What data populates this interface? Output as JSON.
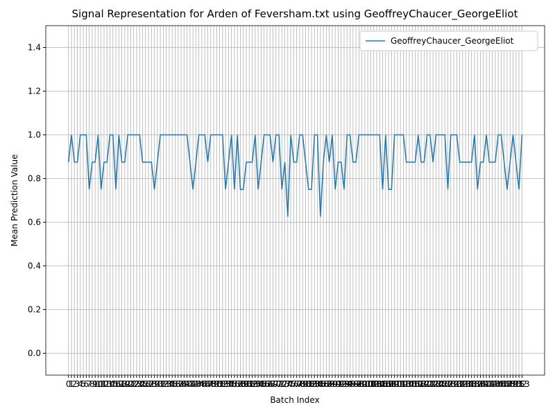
{
  "chart_data": {
    "type": "line",
    "title": "Signal Representation for Arden of Feversham.txt using GeoffreyChaucer_GeorgeEliot",
    "x_label": "Batch Index",
    "y_label": "Mean Prediction Value",
    "x": [
      0,
      1,
      2,
      3,
      4,
      5,
      6,
      7,
      8,
      9,
      10,
      11,
      12,
      13,
      14,
      15,
      16,
      17,
      18,
      19,
      20,
      21,
      22,
      23,
      24,
      25,
      26,
      27,
      28,
      29,
      30,
      31,
      32,
      33,
      34,
      35,
      36,
      37,
      38,
      39,
      40,
      41,
      42,
      43,
      44,
      45,
      46,
      47,
      48,
      49,
      50,
      51,
      52,
      53,
      54,
      55,
      56,
      57,
      58,
      59,
      60,
      61,
      62,
      63,
      64,
      65,
      66,
      67,
      68,
      69,
      70,
      71,
      72,
      73,
      74,
      75,
      76,
      77,
      78,
      79,
      80,
      81,
      82,
      83,
      84,
      85,
      86,
      87,
      88,
      89,
      90,
      91,
      92,
      93,
      94,
      95,
      96,
      97,
      98,
      99,
      100,
      101,
      102,
      103,
      104,
      105,
      106,
      107,
      108,
      109,
      110,
      111,
      112,
      113,
      114,
      115,
      116,
      117,
      118,
      119,
      120,
      121,
      122,
      123,
      124,
      125,
      126,
      127,
      128,
      129,
      130,
      131,
      132,
      133,
      134,
      135,
      136,
      137,
      138,
      139,
      140,
      141,
      142,
      143,
      144,
      145,
      146,
      147,
      148,
      149,
      150,
      151,
      152,
      153
    ],
    "series": [
      {
        "name": "GeoffreyChaucer_GeorgeEliot",
        "color": "#1f77b4",
        "values": [
          0.875,
          1,
          0.875,
          0.875,
          1,
          1,
          1,
          0.75,
          0.875,
          0.875,
          1,
          0.75,
          0.875,
          0.875,
          1,
          1,
          0.75,
          1,
          0.875,
          0.875,
          1,
          1,
          1,
          1,
          1,
          0.875,
          0.875,
          0.875,
          0.875,
          0.75,
          0.875,
          1,
          1,
          1,
          1,
          1,
          1,
          1,
          1,
          1,
          1,
          0.875,
          0.75,
          0.875,
          1,
          1,
          1,
          0.875,
          1,
          1,
          1,
          1,
          1,
          0.75,
          0.875,
          1,
          0.75,
          1,
          0.75,
          0.75,
          0.875,
          0.875,
          0.875,
          1,
          0.75,
          0.875,
          1,
          1,
          1,
          0.875,
          1,
          1,
          0.75,
          0.875,
          0.625,
          1,
          0.875,
          0.875,
          1,
          1,
          0.875,
          0.75,
          0.75,
          1,
          1,
          0.625,
          0.875,
          1,
          0.875,
          1,
          0.75,
          0.875,
          0.875,
          0.75,
          1,
          1,
          0.875,
          0.875,
          1,
          1,
          1,
          1,
          1,
          1,
          1,
          1,
          0.75,
          1,
          0.75,
          0.75,
          1,
          1,
          1,
          1,
          0.875,
          0.875,
          0.875,
          0.875,
          1,
          0.875,
          0.875,
          1,
          1,
          0.875,
          1,
          1,
          1,
          1,
          0.75,
          1,
          1,
          1,
          0.875,
          0.875,
          0.875,
          0.875,
          0.875,
          1,
          0.75,
          0.875,
          0.875,
          1,
          0.875,
          0.875,
          0.875,
          1,
          1,
          0.875,
          0.75,
          0.875,
          1,
          0.875,
          0.75,
          1
        ]
      }
    ],
    "xlim": [
      -7.65,
      160.65
    ],
    "ylim": [
      -0.1,
      1.5
    ],
    "xticks": [
      0,
      1,
      2,
      3,
      4,
      5,
      6,
      7,
      8,
      9,
      10,
      11,
      12,
      13,
      14,
      15,
      16,
      17,
      18,
      19,
      20,
      21,
      22,
      23,
      24,
      25,
      26,
      27,
      28,
      29,
      30,
      31,
      32,
      33,
      34,
      35,
      36,
      37,
      38,
      39,
      40,
      41,
      42,
      43,
      44,
      45,
      46,
      47,
      48,
      49,
      50,
      51,
      52,
      53,
      54,
      55,
      56,
      57,
      58,
      59,
      60,
      61,
      62,
      63,
      64,
      65,
      66,
      67,
      68,
      69,
      70,
      71,
      72,
      73,
      74,
      75,
      76,
      77,
      78,
      79,
      80,
      81,
      82,
      83,
      84,
      85,
      86,
      87,
      88,
      89,
      90,
      91,
      92,
      93,
      94,
      95,
      96,
      97,
      98,
      99,
      100,
      101,
      102,
      103,
      104,
      105,
      106,
      107,
      108,
      109,
      110,
      111,
      112,
      113,
      114,
      115,
      116,
      117,
      118,
      119,
      120,
      121,
      122,
      123,
      124,
      125,
      126,
      127,
      128,
      129,
      130,
      131,
      132,
      133,
      134,
      135,
      136,
      137,
      138,
      139,
      140,
      141,
      142,
      143,
      144,
      145,
      146,
      147,
      148,
      149,
      150,
      151,
      152,
      153
    ],
    "yticks": [
      {
        "value": 0,
        "label": "0.0"
      },
      0.2,
      0.4,
      0.6,
      0.8,
      {
        "value": 1,
        "label": "1.0"
      },
      1.2,
      1.4
    ],
    "grid": true,
    "legend": "upper right"
  }
}
